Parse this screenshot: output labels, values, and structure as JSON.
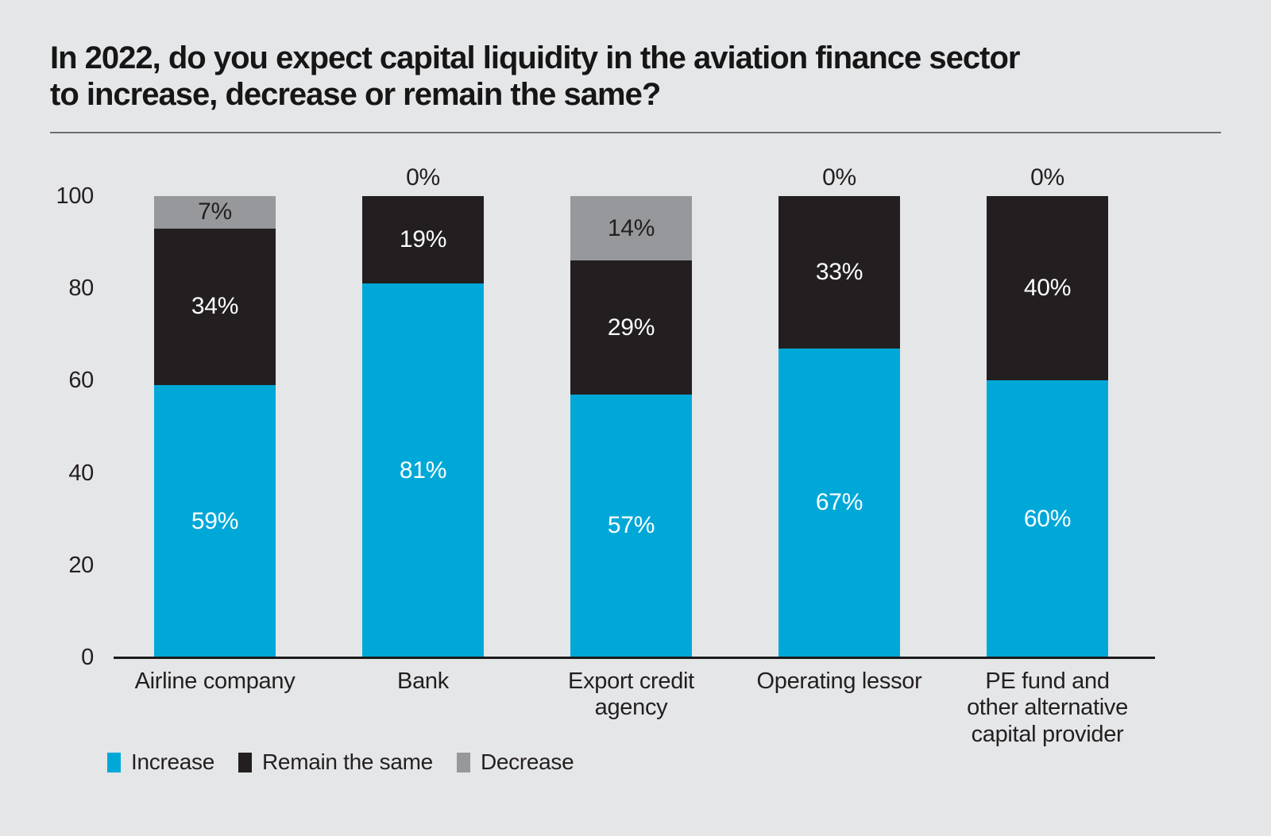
{
  "title_lines": [
    "In 2022, do you expect capital liquidity in the aviation finance sector",
    "to increase, decrease or remain the same?"
  ],
  "chart_data": {
    "type": "bar",
    "stacked": true,
    "title": "In 2022, do you expect capital liquidity in the aviation finance sector to increase, decrease or remain the same?",
    "categories": [
      "Airline company",
      "Bank",
      "Export credit\nagency",
      "Operating lessor",
      "PE fund and\nother alternative\ncapital provider"
    ],
    "series": [
      {
        "name": "Increase",
        "color": "#00a8d8",
        "label_color": "#ffffff",
        "values": [
          59,
          81,
          57,
          67,
          60
        ]
      },
      {
        "name": "Remain the same",
        "color": "#231f20",
        "label_color": "#ffffff",
        "values": [
          34,
          19,
          29,
          33,
          40
        ]
      },
      {
        "name": "Decrease",
        "color": "#97989b",
        "label_color": "#231f20",
        "values": [
          7,
          0,
          14,
          0,
          0
        ]
      }
    ],
    "value_suffix": "%",
    "yticks": [
      100,
      80,
      60,
      40,
      20,
      0
    ],
    "ylim": [
      0,
      100
    ],
    "xlabel": "",
    "ylabel": "",
    "grid": false,
    "legend_position": "bottom"
  },
  "colors": {
    "background": "#e5e6e8",
    "axis_line": "#1a1a1a",
    "text": "#231f20",
    "title_text": "#161616",
    "divider": "#6d6e71"
  }
}
